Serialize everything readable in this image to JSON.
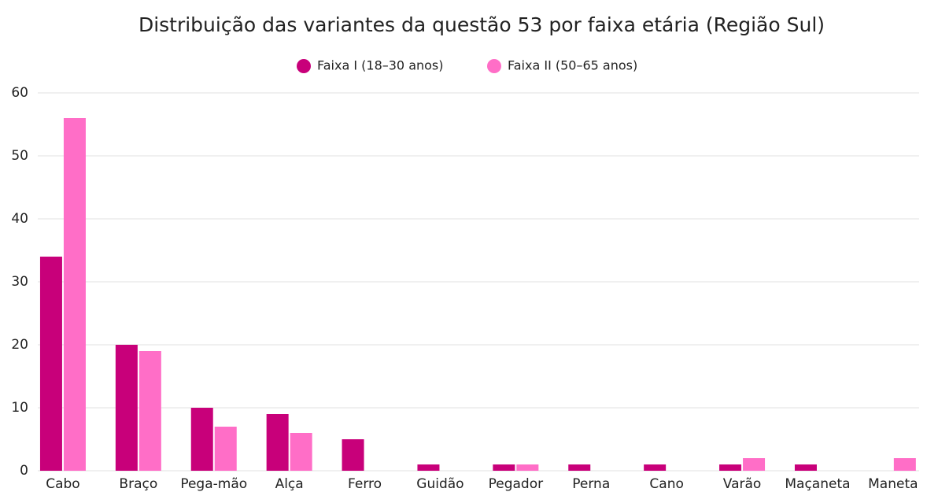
{
  "chart_data": {
    "type": "bar",
    "title": "Distribuição das variantes da questão 53 por faixa etária (Região Sul)",
    "categories": [
      "Cabo",
      "Braço",
      "Pega-mão",
      "Alça",
      "Ferro",
      "Guidão",
      "Pegador",
      "Perna",
      "Cano",
      "Varão",
      "Maçaneta",
      "Maneta"
    ],
    "series": [
      {
        "name": "Faixa I (18–30 anos)",
        "color": "#c8007a",
        "values": [
          34,
          20,
          10,
          9,
          5,
          1,
          1,
          1,
          1,
          1,
          1,
          0
        ]
      },
      {
        "name": "Faixa II (50–65 anos)",
        "color": "#ff6ec7",
        "values": [
          56,
          19,
          7,
          6,
          0,
          0,
          1,
          0,
          0,
          2,
          0,
          2
        ]
      }
    ],
    "ylim": [
      0,
      60
    ],
    "yticks": [
      0,
      10,
      20,
      30,
      40,
      50,
      60
    ],
    "grid": true,
    "legend": "top"
  }
}
